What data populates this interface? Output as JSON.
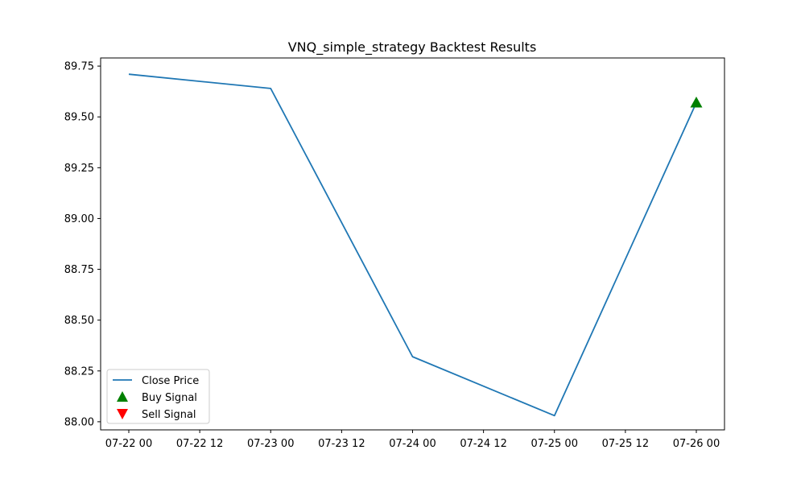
{
  "chart_data": {
    "type": "line",
    "title": "VNQ_simple_strategy Backtest Results",
    "xlabel": "",
    "ylabel": "",
    "x_tick_labels": [
      "07-22 00",
      "07-22 12",
      "07-23 00",
      "07-23 12",
      "07-24 00",
      "07-24 12",
      "07-25 00",
      "07-25 12",
      "07-26 00"
    ],
    "y_tick_labels": [
      "88.00",
      "88.25",
      "88.50",
      "88.75",
      "89.00",
      "89.25",
      "89.50",
      "89.75"
    ],
    "xlim": [
      "2024-07-21T20:00",
      "2024-07-26T04:00"
    ],
    "ylim": [
      87.96,
      89.79
    ],
    "grid": false,
    "legend_position": "lower-left",
    "series": [
      {
        "name": "Close Price",
        "kind": "line",
        "color": "#1f77b4",
        "x": [
          "07-22 00",
          "07-23 00",
          "07-24 00",
          "07-25 00",
          "07-26 00"
        ],
        "values": [
          89.71,
          89.64,
          88.32,
          88.03,
          89.57
        ]
      },
      {
        "name": "Buy Signal",
        "kind": "marker",
        "marker": "triangle-up",
        "color": "#008000",
        "x": [
          "07-26 00"
        ],
        "values": [
          89.57
        ]
      },
      {
        "name": "Sell Signal",
        "kind": "marker",
        "marker": "triangle-down",
        "color": "#ff0000",
        "x": [],
        "values": []
      }
    ]
  }
}
